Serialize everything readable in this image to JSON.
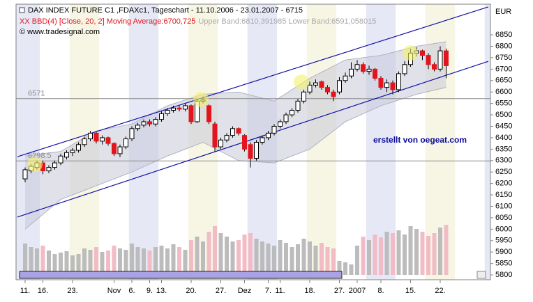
{
  "chart_data": {
    "type": "candlestick",
    "title": "DAX INDEX FUTURE C1 ,FDAXc1, Tageschart - 11.10.2006 - 23.01.2007 - 6715",
    "indicator": "XX BBD(4) [Close, 20, 2] Moving Average:6700,725",
    "indicator_bands": "Upper Band:6810,391985 Lower Band:6591,058015",
    "copyright": "© www.tradesignal.com",
    "annotation": "erstellt von oegeat.com",
    "y_unit": "EUR",
    "categories": [
      "11.",
      null,
      null,
      "16.",
      null,
      null,
      null,
      null,
      "23.",
      null,
      null,
      null,
      null,
      null,
      null,
      "Nov",
      null,
      null,
      "6.",
      null,
      null,
      "9.",
      null,
      "13.",
      null,
      null,
      null,
      null,
      "20.",
      null,
      null,
      null,
      null,
      "27.",
      null,
      null,
      null,
      "Dez",
      null,
      null,
      null,
      "7.",
      null,
      "11.",
      null,
      null,
      null,
      null,
      "18.",
      null,
      null,
      null,
      null,
      "27.",
      null,
      null,
      "2007",
      null,
      null,
      null,
      "8.",
      null,
      null,
      null,
      null,
      "15.",
      null,
      null,
      null,
      null,
      "22.",
      null
    ],
    "open": [
      6220,
      6255,
      6270,
      6290,
      6255,
      6270,
      6290,
      6315,
      6335,
      6345,
      6370,
      6395,
      6420,
      6385,
      6400,
      6375,
      6330,
      6360,
      6395,
      6440,
      6455,
      6470,
      6460,
      6480,
      6505,
      6520,
      6530,
      6525,
      6540,
      6470,
      6560,
      6540,
      6460,
      6360,
      6390,
      6410,
      6440,
      6410,
      6370,
      6310,
      6380,
      6400,
      6420,
      6450,
      6470,
      6500,
      6520,
      6560,
      6600,
      6630,
      6645,
      6620,
      6600,
      6600,
      6650,
      6670,
      6700,
      6720,
      6690,
      6700,
      6660,
      6620,
      6640,
      6610,
      6680,
      6720,
      6770,
      6780,
      6760,
      6720,
      6700,
      6780
    ],
    "high": [
      6270,
      6285,
      6300,
      6300,
      6280,
      6300,
      6330,
      6345,
      6355,
      6380,
      6405,
      6430,
      6425,
      6410,
      6405,
      6380,
      6370,
      6405,
      6450,
      6465,
      6480,
      6480,
      6490,
      6515,
      6530,
      6540,
      6540,
      6550,
      6545,
      6570,
      6580,
      6545,
      6470,
      6400,
      6420,
      6450,
      6445,
      6415,
      6380,
      6390,
      6410,
      6430,
      6460,
      6480,
      6510,
      6530,
      6570,
      6610,
      6645,
      6655,
      6650,
      6630,
      6610,
      6665,
      6685,
      6730,
      6740,
      6730,
      6715,
      6705,
      6670,
      6655,
      6650,
      6690,
      6735,
      6790,
      6795,
      6785,
      6770,
      6730,
      6800,
      6790
    ],
    "low": [
      6205,
      6245,
      6260,
      6240,
      6245,
      6260,
      6280,
      6305,
      6320,
      6335,
      6360,
      6385,
      6375,
      6370,
      6365,
      6320,
      6315,
      6350,
      6385,
      6430,
      6445,
      6450,
      6450,
      6470,
      6495,
      6510,
      6515,
      6515,
      6460,
      6465,
      6550,
      6460,
      6340,
      6350,
      6380,
      6400,
      6410,
      6340,
      6270,
      6300,
      6370,
      6390,
      6410,
      6440,
      6460,
      6490,
      6510,
      6550,
      6590,
      6620,
      6610,
      6590,
      6560,
      6590,
      6640,
      6660,
      6690,
      6680,
      6675,
      6650,
      6610,
      6600,
      6590,
      6600,
      6670,
      6710,
      6755,
      6740,
      6700,
      6690,
      6690,
      6660
    ],
    "close": [
      6260,
      6275,
      6290,
      6255,
      6270,
      6290,
      6320,
      6335,
      6345,
      6370,
      6395,
      6420,
      6385,
      6400,
      6375,
      6330,
      6360,
      6395,
      6440,
      6455,
      6470,
      6460,
      6480,
      6505,
      6520,
      6530,
      6525,
      6540,
      6470,
      6560,
      6565,
      6470,
      6360,
      6390,
      6410,
      6440,
      6420,
      6350,
      6310,
      6380,
      6400,
      6420,
      6450,
      6470,
      6500,
      6520,
      6560,
      6600,
      6630,
      6640,
      6620,
      6600,
      6580,
      6650,
      6670,
      6700,
      6720,
      6690,
      6700,
      6660,
      6620,
      6640,
      6610,
      6680,
      6720,
      6770,
      6780,
      6760,
      6720,
      6700,
      6780,
      6715
    ],
    "volume": [
      45,
      40,
      38,
      42,
      35,
      30,
      32,
      34,
      28,
      30,
      38,
      36,
      40,
      33,
      35,
      42,
      38,
      36,
      45,
      40,
      38,
      35,
      40,
      42,
      38,
      44,
      40,
      36,
      50,
      55,
      48,
      62,
      70,
      60,
      55,
      48,
      50,
      58,
      60,
      52,
      48,
      45,
      42,
      50,
      46,
      40,
      44,
      52,
      48,
      42,
      46,
      40,
      38,
      20,
      18,
      15,
      42,
      55,
      50,
      58,
      54,
      62,
      60,
      64,
      58,
      70,
      66,
      62,
      56,
      60,
      68,
      72
    ],
    "band": {
      "x": [
        0,
        6,
        12,
        18,
        24,
        30,
        36,
        42,
        48,
        54,
        60,
        66,
        71
      ],
      "upper": [
        6320,
        6340,
        6430,
        6460,
        6540,
        6590,
        6600,
        6560,
        6660,
        6740,
        6760,
        6800,
        6820
      ],
      "lower": [
        6000,
        6130,
        6190,
        6250,
        6320,
        6380,
        6300,
        6290,
        6350,
        6470,
        6540,
        6590,
        6620
      ]
    },
    "channels": [
      {
        "x": [
          -1.3,
          78.1
        ],
        "values": [
          6317,
          6972
        ]
      },
      {
        "x": [
          -1.3,
          78.1
        ],
        "values": [
          6053,
          6734
        ]
      }
    ],
    "hlines": [
      6571,
      6298.5
    ],
    "colors": {
      "up": "#ffffff",
      "down": "#e3141c",
      "channel": "#1010a8",
      "band": "#c9c9d8",
      "volume_up": "#bcbcbc",
      "volume_down": "#f2bcc6"
    },
    "ylim": [
      5785,
      6978
    ],
    "yticks": [
      5800,
      5850,
      5900,
      5950,
      6000,
      6050,
      6100,
      6150,
      6200,
      6250,
      6300,
      6350,
      6400,
      6450,
      6500,
      6550,
      6600,
      6650,
      6700,
      6750,
      6800,
      6850
    ]
  }
}
